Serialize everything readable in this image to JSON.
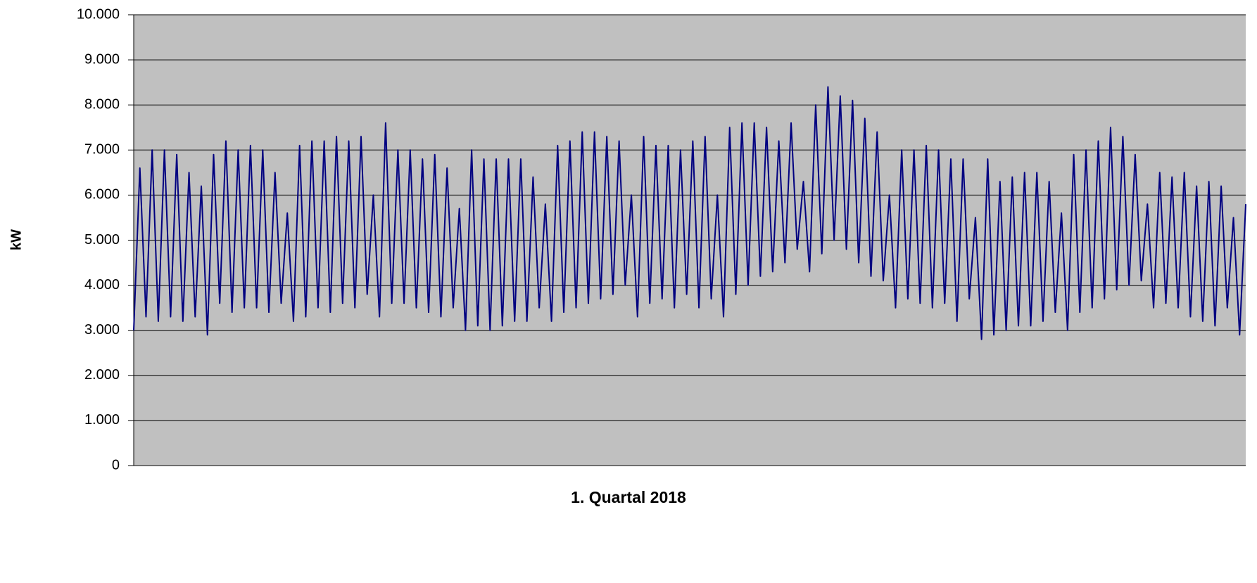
{
  "chart_data": {
    "type": "line",
    "y_label": "kW",
    "x_label": "1. Quartal 2018",
    "ylim": [
      0,
      10000
    ],
    "yticks": [
      0,
      {
        "value": 1000,
        "label": "1.000"
      },
      {
        "value": 2000,
        "label": "2.000"
      },
      {
        "value": 3000,
        "label": "3.000"
      },
      {
        "value": 4000,
        "label": "4.000"
      },
      {
        "value": 5000,
        "label": "5.000"
      },
      {
        "value": 6000,
        "label": "6.000"
      },
      {
        "value": 7000,
        "label": "7.000"
      },
      {
        "value": 8000,
        "label": "8.000"
      },
      {
        "value": 9000,
        "label": "9.000"
      },
      {
        "value": 10000,
        "label": "10.000"
      }
    ],
    "grid": true,
    "plot_background": "#c0c0c0",
    "series": [
      {
        "color": "#000080",
        "values": [
          3000,
          6600,
          3300,
          7000,
          3200,
          7000,
          3300,
          6900,
          3200,
          6500,
          3300,
          6200,
          2900,
          6900,
          3600,
          7200,
          3400,
          7000,
          3500,
          7100,
          3500,
          7000,
          3400,
          6500,
          3600,
          5600,
          3200,
          7100,
          3300,
          7200,
          3500,
          7200,
          3400,
          7300,
          3600,
          7200,
          3500,
          7300,
          3800,
          6000,
          3300,
          7600,
          3600,
          7000,
          3600,
          7000,
          3500,
          6800,
          3400,
          6900,
          3300,
          6600,
          3500,
          5700,
          3000,
          7000,
          3100,
          6800,
          3000,
          6800,
          3100,
          6800,
          3200,
          6800,
          3200,
          6400,
          3500,
          5800,
          3200,
          7100,
          3400,
          7200,
          3500,
          7400,
          3600,
          7400,
          3700,
          7300,
          3800,
          7200,
          4000,
          6000,
          3300,
          7300,
          3600,
          7100,
          3700,
          7100,
          3500,
          7000,
          3800,
          7200,
          3500,
          7300,
          3700,
          6000,
          3300,
          7500,
          3800,
          7600,
          4000,
          7600,
          4200,
          7500,
          4300,
          7200,
          4500,
          7600,
          4800,
          6300,
          4300,
          8000,
          4700,
          8400,
          5000,
          8200,
          4800,
          8100,
          4500,
          7700,
          4200,
          7400,
          4100,
          6000,
          3500,
          7000,
          3700,
          7000,
          3600,
          7100,
          3500,
          7000,
          3600,
          6800,
          3200,
          6800,
          3700,
          5500,
          2800,
          6800,
          2900,
          6300,
          3000,
          6400,
          3100,
          6500,
          3100,
          6500,
          3200,
          6300,
          3400,
          5600,
          3000,
          6900,
          3400,
          7000,
          3500,
          7200,
          3700,
          7500,
          3900,
          7300,
          4000,
          6900,
          4100,
          5800,
          3500,
          6500,
          3600,
          6400,
          3500,
          6500,
          3300,
          6200,
          3200,
          6300,
          3100,
          6200,
          3500,
          5500,
          2900,
          5800
        ]
      }
    ]
  }
}
